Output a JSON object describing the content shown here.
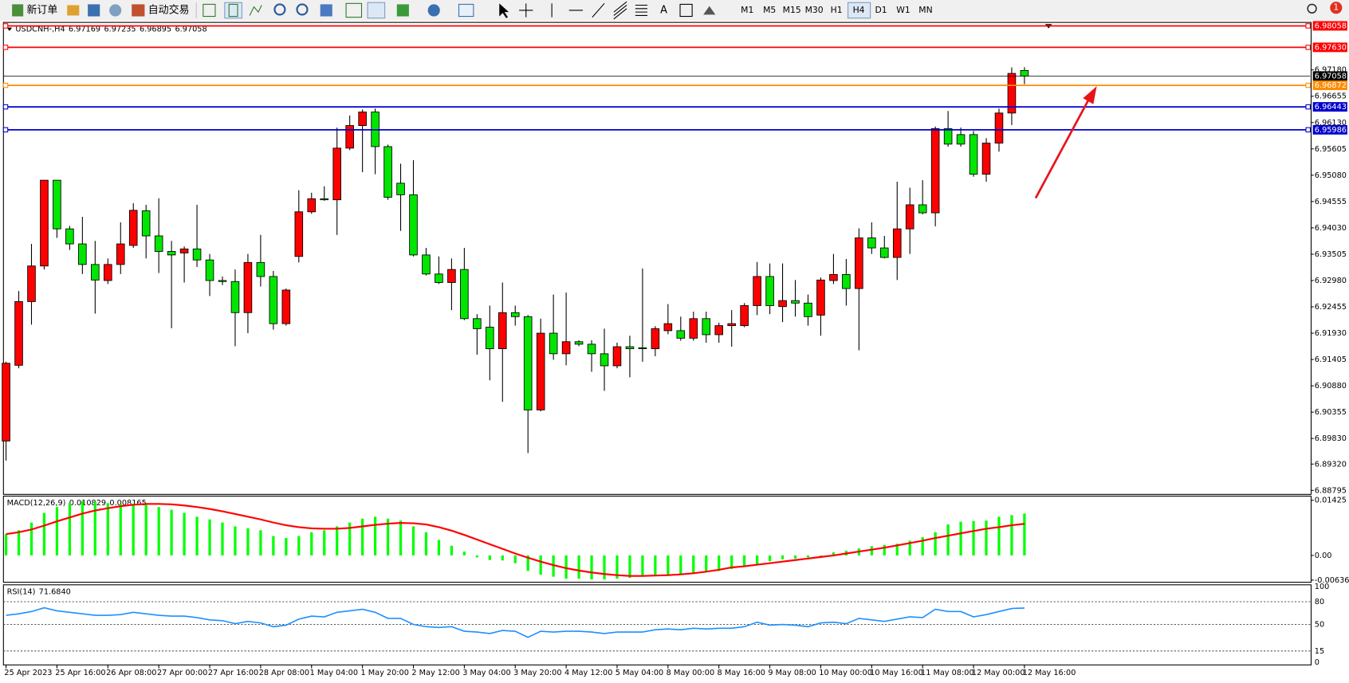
{
  "toolbar": {
    "new_order": "新订单",
    "auto_trading": "自动交易",
    "text_tool": "A",
    "timeframes": [
      "M1",
      "M5",
      "M15",
      "M30",
      "H1",
      "H4",
      "D1",
      "W1",
      "MN"
    ],
    "notifications": 1
  },
  "chart_data": [
    {
      "type": "candlestick",
      "symbol": "USDCNH-,H4",
      "up_color": "#ff0000",
      "down_color": "#00e600",
      "categories": [
        "25 Apr 2023",
        null,
        null,
        null,
        "25 Apr 16:00",
        null,
        null,
        null,
        "26 Apr 08:00",
        null,
        null,
        null,
        "27 Apr 00:00",
        null,
        null,
        null,
        "27 Apr 16:00",
        null,
        null,
        null,
        "28 Apr 08:00",
        null,
        null,
        null,
        "1 May 04:00",
        null,
        null,
        null,
        "1 May 20:00",
        null,
        null,
        null,
        "2 May 12:00",
        null,
        null,
        null,
        "3 May 04:00",
        null,
        null,
        null,
        "3 May 20:00",
        null,
        null,
        null,
        "4 May 12:00",
        null,
        null,
        null,
        "5 May 04:00",
        null,
        null,
        null,
        "8 May 00:00",
        null,
        null,
        null,
        "8 May 16:00",
        null,
        null,
        null,
        "9 May 08:00",
        null,
        null,
        null,
        "10 May 00:00",
        null,
        null,
        null,
        "10 May 16:00",
        null,
        null,
        null,
        "11 May 08:00",
        null,
        null,
        null,
        "12 May 00:00",
        null,
        null,
        null,
        "12 May 16:00"
      ],
      "open": [
        6.8978,
        6.9129,
        6.9256,
        6.9327,
        6.9498,
        6.9401,
        6.9371,
        6.933,
        6.9298,
        6.933,
        6.9368,
        6.9437,
        6.9387,
        6.9356,
        6.9353,
        6.9361,
        6.9339,
        6.9298,
        6.9296,
        6.9234,
        6.9334,
        6.9306,
        6.9212,
        6.9346,
        6.9435,
        6.9461,
        6.9459,
        6.9562,
        6.9607,
        6.9634,
        6.9565,
        6.9492,
        6.9469,
        6.9349,
        6.9311,
        6.9294,
        6.932,
        6.9222,
        6.9205,
        6.9162,
        6.9234,
        6.9226,
        6.904,
        6.9193,
        6.9152,
        6.9176,
        6.9171,
        6.9152,
        6.9128,
        6.9166,
        6.9164,
        6.9162,
        6.9198,
        6.9198,
        6.9183,
        6.9222,
        6.919,
        6.9208,
        6.9208,
        6.9248,
        6.9306,
        6.9246,
        6.9258,
        6.9253,
        6.9229,
        6.9298,
        6.931,
        6.9282,
        6.9383,
        6.9363,
        6.9344,
        6.9401,
        6.9449,
        6.9433,
        6.9601,
        6.9589,
        6.9589,
        6.951,
        6.9572,
        6.9632,
        6.97169
      ],
      "high": [
        6.9136,
        6.9277,
        6.9371,
        6.9498,
        6.9498,
        6.9407,
        6.9425,
        6.9377,
        6.9342,
        6.9414,
        6.9452,
        6.9449,
        6.9462,
        6.9377,
        6.9366,
        6.9449,
        6.9351,
        6.9306,
        6.932,
        6.9351,
        6.9389,
        6.9317,
        6.9282,
        6.9478,
        6.9473,
        6.9486,
        6.9603,
        6.9627,
        6.9639,
        6.9641,
        6.9569,
        6.9531,
        6.9538,
        6.9363,
        6.9346,
        6.9342,
        6.9363,
        6.9231,
        6.9248,
        6.9294,
        6.9248,
        6.9229,
        6.9222,
        6.927,
        6.9274,
        6.9179,
        6.9179,
        6.9202,
        6.9174,
        6.9188,
        6.9322,
        6.9207,
        6.9251,
        6.9226,
        6.9236,
        6.9236,
        6.9214,
        6.9239,
        6.9253,
        6.9335,
        6.9332,
        6.9332,
        6.9299,
        6.927,
        6.9304,
        6.9351,
        6.9341,
        6.9402,
        6.9414,
        6.9387,
        6.9495,
        6.9483,
        6.9498,
        6.9605,
        6.9636,
        6.9603,
        6.9596,
        6.9582,
        6.9641,
        6.9723,
        6.97235
      ],
      "low": [
        6.8939,
        6.9123,
        6.921,
        6.932,
        6.9383,
        6.9359,
        6.9311,
        6.9232,
        6.9291,
        6.9311,
        6.9363,
        6.9342,
        6.9313,
        6.9203,
        6.9294,
        6.9325,
        6.9267,
        6.9289,
        6.9167,
        6.9193,
        6.9286,
        6.92,
        6.9208,
        6.9334,
        6.9431,
        6.9457,
        6.9389,
        6.9558,
        6.9514,
        6.951,
        6.9459,
        6.9397,
        6.9346,
        6.9308,
        6.9291,
        6.9239,
        6.9219,
        6.915,
        6.9099,
        6.9056,
        6.9208,
        6.8954,
        6.9037,
        6.914,
        6.9129,
        6.9167,
        6.9116,
        6.9078,
        6.9123,
        6.9105,
        6.9136,
        6.9147,
        6.9191,
        6.9178,
        6.9178,
        6.9174,
        6.9174,
        6.9166,
        6.9205,
        6.9229,
        6.9231,
        6.9215,
        6.9226,
        6.9208,
        6.9188,
        6.9291,
        6.9248,
        6.9159,
        6.9351,
        6.9342,
        6.9299,
        6.9351,
        6.943,
        6.9406,
        6.9565,
        6.9565,
        6.9505,
        6.9495,
        6.9555,
        6.9608,
        6.96895
      ],
      "close": [
        6.9133,
        6.9256,
        6.9327,
        6.9498,
        6.9401,
        6.9371,
        6.933,
        6.9299,
        6.933,
        6.9371,
        6.9438,
        6.9387,
        6.9356,
        6.9349,
        6.9361,
        6.9339,
        6.9298,
        6.9296,
        6.9234,
        6.9334,
        6.9306,
        6.9212,
        6.9279,
        6.9435,
        6.9461,
        6.9459,
        6.9562,
        6.9607,
        6.9634,
        6.9565,
        6.9464,
        6.9469,
        6.9349,
        6.9311,
        6.9294,
        6.932,
        6.9222,
        6.9202,
        6.9162,
        6.9234,
        6.9226,
        6.904,
        6.9193,
        6.9152,
        6.9176,
        6.9171,
        6.9152,
        6.9128,
        6.9166,
        6.9162,
        6.9162,
        6.9202,
        6.9212,
        6.9183,
        6.9222,
        6.919,
        6.9208,
        6.9212,
        6.9248,
        6.9306,
        6.9248,
        6.9258,
        6.9253,
        6.9226,
        6.9299,
        6.931,
        6.9282,
        6.9383,
        6.9363,
        6.9344,
        6.9401,
        6.9449,
        6.9433,
        6.9601,
        6.957,
        6.957,
        6.951,
        6.9572,
        6.9632,
        6.9711,
        6.97058
      ],
      "ylim": [
        6.8875,
        6.9811
      ],
      "yticks": [
        {
          "value": 6.9718,
          "label": "6.97180"
        },
        6.96655,
        {
          "value": 6.9613,
          "label": "6.96130"
        },
        6.95605,
        {
          "value": 6.9508,
          "label": "6.95080"
        },
        6.94555,
        {
          "value": 6.9403,
          "label": "6.94030"
        },
        6.93505,
        {
          "value": 6.9298,
          "label": "6.92980"
        },
        6.92455,
        {
          "value": 6.9193,
          "label": "6.91930"
        },
        6.91405,
        {
          "value": 6.9088,
          "label": "6.90880"
        },
        6.90355,
        {
          "value": 6.8983,
          "label": "6.89830"
        },
        {
          "value": 6.8932,
          "label": "6.89320"
        },
        6.88795
      ],
      "levels": [
        {
          "price": 6.98058,
          "color": "#ff0000"
        },
        {
          "price": 6.9763,
          "label": "6.97630",
          "color": "#ff0000"
        },
        {
          "price": 6.96872,
          "color": "#ff8c00"
        },
        {
          "price": 6.96443,
          "color": "#0000cd"
        },
        {
          "price": 6.95986,
          "color": "#0000cd"
        }
      ]
    },
    {
      "type": "macd",
      "title": "MACD(12,26,9)",
      "color": "#00ff00",
      "signal_color": "#ff0000",
      "histogram": [
        0.0055,
        0.0065,
        0.0085,
        0.011,
        0.0125,
        0.0135,
        0.014,
        0.0138,
        0.0135,
        0.0133,
        0.0133,
        0.0132,
        0.0125,
        0.0118,
        0.011,
        0.01,
        0.0093,
        0.0085,
        0.0075,
        0.007,
        0.0065,
        0.005,
        0.0045,
        0.005,
        0.006,
        0.0065,
        0.0075,
        0.0085,
        0.0095,
        0.01,
        0.0095,
        0.009,
        0.0075,
        0.006,
        0.004,
        0.0025,
        0.001,
        -0.0005,
        -0.0012,
        -0.0013,
        -0.002,
        -0.004,
        -0.005,
        -0.0055,
        -0.006,
        -0.006,
        -0.0062,
        -0.0062,
        -0.006,
        -0.0058,
        -0.0055,
        -0.0052,
        -0.005,
        -0.0048,
        -0.0045,
        -0.0042,
        -0.004,
        -0.0035,
        -0.003,
        -0.0022,
        -0.0015,
        -0.001,
        -0.0008,
        -0.0005,
        -0.0002,
        0.0008,
        0.0012,
        0.0018,
        0.0024,
        0.0027,
        0.003,
        0.0038,
        0.0047,
        0.006,
        0.008,
        0.0087,
        0.0089,
        0.009,
        0.01,
        0.0104,
        0.010829
      ],
      "signal": [
        0.0055,
        0.006,
        0.0067,
        0.0077,
        0.0088,
        0.0098,
        0.0108,
        0.0116,
        0.0122,
        0.0127,
        0.0131,
        0.0133,
        0.0133,
        0.0132,
        0.0129,
        0.0125,
        0.012,
        0.0114,
        0.0107,
        0.01,
        0.0093,
        0.0085,
        0.0078,
        0.0073,
        0.007,
        0.0069,
        0.0069,
        0.0071,
        0.0075,
        0.0079,
        0.0082,
        0.0084,
        0.0083,
        0.008,
        0.0073,
        0.0064,
        0.0053,
        0.0041,
        0.0029,
        0.0017,
        0.0005,
        -0.0006,
        -0.0016,
        -0.0025,
        -0.0033,
        -0.0039,
        -0.0044,
        -0.0048,
        -0.0051,
        -0.0053,
        -0.0053,
        -0.0052,
        -0.0051,
        -0.0049,
        -0.0046,
        -0.0042,
        -0.0037,
        -0.0031,
        -0.0028,
        -0.0024,
        -0.002,
        -0.0016,
        -0.0012,
        -0.0008,
        -0.0004,
        0,
        0.0005,
        0.001,
        0.0015,
        0.002,
        0.0026,
        0.0032,
        0.0038,
        0.0045,
        0.0051,
        0.0057,
        0.0063,
        0.0069,
        0.0073,
        0.0078,
        0.008165
      ],
      "ylim": [
        -0.0067,
        0.0151
      ],
      "yticks": [
        0.01425,
        {
          "value": 0,
          "label": "0.00"
        },
        -0.006367
      ]
    },
    {
      "type": "rsi",
      "title": "RSI(14)",
      "color": "#1e90ff",
      "last_value_label": "71.6840",
      "values": [
        62,
        64,
        67,
        72,
        68,
        66,
        64,
        62,
        62,
        63,
        66,
        64,
        62,
        61,
        61,
        59,
        56,
        55,
        51,
        54,
        52,
        47,
        49,
        57,
        61,
        60,
        66,
        68,
        70,
        66,
        58,
        58,
        50,
        47,
        46,
        47,
        41,
        40,
        38,
        42,
        41,
        33,
        41,
        40,
        41,
        41,
        40,
        38,
        40,
        40,
        40,
        43,
        44,
        43,
        45,
        44,
        45,
        45,
        47,
        53,
        49,
        50,
        49,
        47,
        52,
        53,
        51,
        58,
        56,
        54,
        57,
        60,
        59,
        70,
        67,
        67,
        60,
        63,
        67,
        71,
        71.684
      ],
      "ylim": [
        0,
        100
      ],
      "yticks": [
        100,
        80,
        50,
        15,
        0
      ]
    }
  ]
}
